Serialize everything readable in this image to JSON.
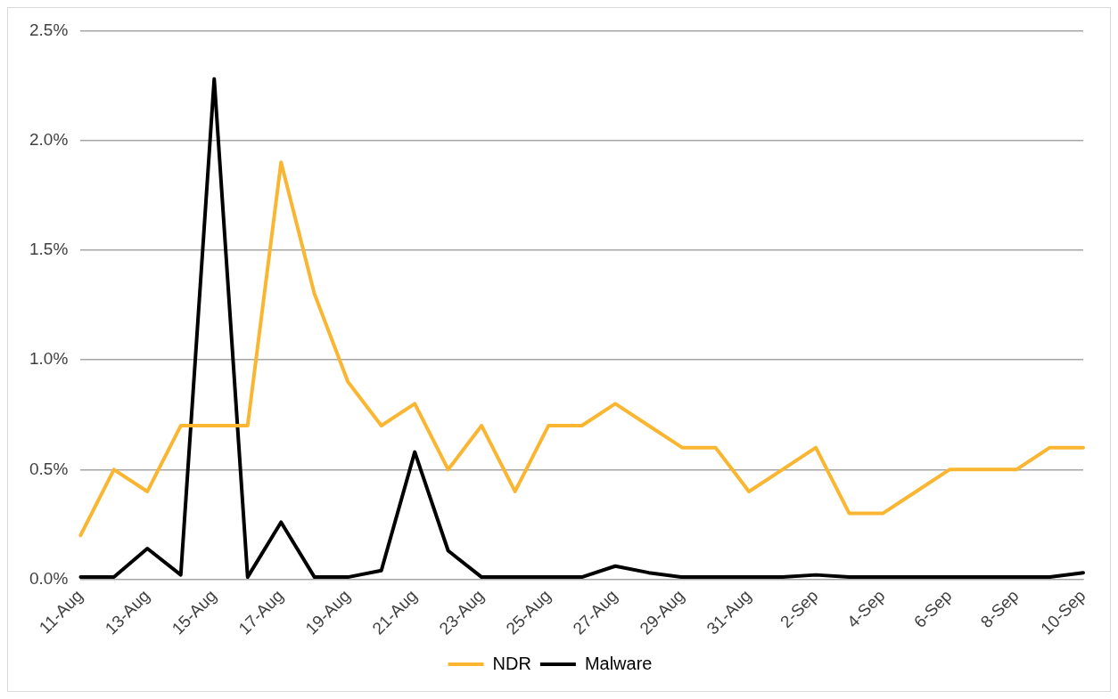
{
  "chart_data": {
    "type": "line",
    "categories": [
      "11-Aug",
      null,
      "13-Aug",
      null,
      "15-Aug",
      null,
      "17-Aug",
      null,
      "19-Aug",
      null,
      "21-Aug",
      null,
      "23-Aug",
      null,
      "25-Aug",
      null,
      "27-Aug",
      null,
      "29-Aug",
      null,
      "31-Aug",
      null,
      "2-Sep",
      null,
      "4-Sep",
      null,
      "6-Sep",
      null,
      "8-Sep",
      null,
      "10-Sep"
    ],
    "series": [
      {
        "name": "NDR",
        "color": "#fbb631",
        "values": [
          0.2,
          0.5,
          0.4,
          0.7,
          0.7,
          0.7,
          1.9,
          1.3,
          0.9,
          0.7,
          0.8,
          0.5,
          0.7,
          0.4,
          0.7,
          0.7,
          0.8,
          0.7,
          0.6,
          0.6,
          0.4,
          0.5,
          0.6,
          0.3,
          0.3,
          0.4,
          0.5,
          0.5,
          0.5,
          0.6,
          0.6
        ]
      },
      {
        "name": "Malware",
        "color": "#000000",
        "values": [
          0.01,
          0.01,
          0.14,
          0.02,
          2.28,
          0.01,
          0.26,
          0.01,
          0.01,
          0.04,
          0.58,
          0.13,
          0.01,
          0.01,
          0.01,
          0.01,
          0.06,
          0.03,
          0.01,
          0.01,
          0.01,
          0.01,
          0.02,
          0.01,
          0.01,
          0.01,
          0.01,
          0.01,
          0.01,
          0.01,
          0.03
        ]
      }
    ],
    "ylim": [
      0,
      2.5
    ],
    "yticks": [
      {
        "value": 0,
        "label": "0.0%"
      },
      {
        "value": 0.5,
        "label": "0.5%"
      },
      {
        "value": 1,
        "label": "1.0%"
      },
      {
        "value": 1.5,
        "label": "1.5%"
      },
      {
        "value": 2,
        "label": "2.0%"
      },
      {
        "value": 2.5,
        "label": "2.5%"
      }
    ],
    "grid": "y",
    "legend": "bottom",
    "marker": "none",
    "line_style": "solid"
  }
}
